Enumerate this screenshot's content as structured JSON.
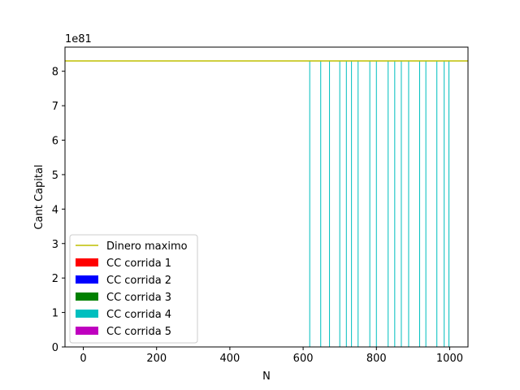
{
  "chart_data": {
    "type": "bar",
    "xlabel": "N",
    "ylabel": "Cant Capital",
    "offset_text": "1e81",
    "scale_exponent": 81,
    "xlim": [
      -50,
      1050
    ],
    "ylim": [
      0,
      8.7
    ],
    "x_ticks": [
      0,
      200,
      400,
      600,
      800,
      1000
    ],
    "x_tick_labels": [
      "0",
      "200",
      "400",
      "600",
      "800",
      "1000"
    ],
    "y_ticks": [
      0,
      1,
      2,
      3,
      4,
      5,
      6,
      7,
      8
    ],
    "y_tick_labels": [
      "0",
      "1",
      "2",
      "3",
      "4",
      "5",
      "6",
      "7",
      "8"
    ],
    "grid": false,
    "legend_position": "lower-left",
    "max_line": {
      "name": "Dinero maximo",
      "value": 8.3,
      "color": "#bfbf00"
    },
    "series": [
      {
        "name": "CC corrida 1",
        "color": "#ff0000",
        "x": [],
        "values": []
      },
      {
        "name": "CC corrida 2",
        "color": "#0000ff",
        "x": [],
        "values": []
      },
      {
        "name": "CC corrida 3",
        "color": "#008000",
        "x": [],
        "values": []
      },
      {
        "name": "CC corrida 4",
        "color": "#00bfbf",
        "x": [
          618,
          648,
          672,
          700,
          718,
          732,
          750,
          782,
          800,
          832,
          850,
          868,
          888,
          918,
          935,
          965,
          985,
          998
        ],
        "values": [
          8.3,
          8.3,
          8.3,
          8.3,
          8.3,
          8.3,
          8.3,
          8.3,
          8.3,
          8.3,
          8.3,
          8.3,
          8.3,
          8.3,
          8.3,
          8.3,
          8.3,
          8.3
        ]
      },
      {
        "name": "CC corrida 5",
        "color": "#bf00bf",
        "x": [],
        "values": []
      }
    ]
  }
}
